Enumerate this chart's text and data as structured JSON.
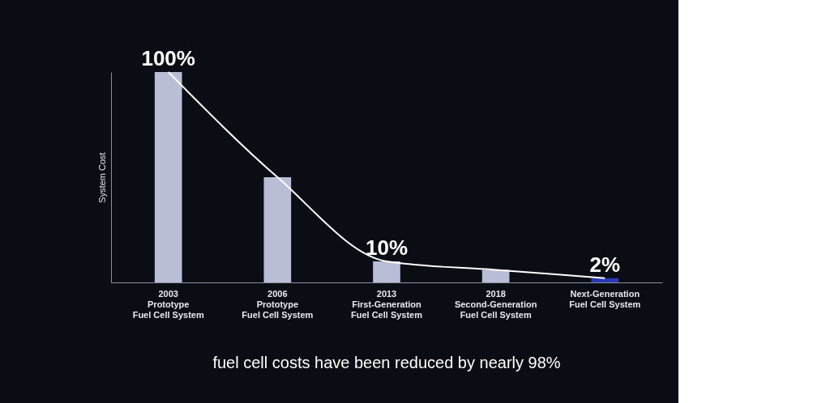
{
  "chart_data": {
    "type": "bar",
    "ylabel": "System Cost",
    "categories": [
      "2003\nPrototype\nFuel Cell System",
      "2006\nPrototype\nFuel Cell System",
      "2013\nFirst-Generation\nFuel Cell System",
      "2018\nSecond-Generation\nFuel Cell System",
      "Next-Generation\nFuel Cell System"
    ],
    "ylim": [
      0,
      100
    ],
    "series": [
      {
        "colors": [
          "#b9bed6",
          "#b9bed6",
          "#b9bed6",
          "#b9bed6",
          "#2a38b8"
        ],
        "values": [
          100,
          50,
          10,
          6,
          2
        ],
        "value_labels": [
          "100%",
          null,
          "10%",
          null,
          "2%"
        ]
      },
      {
        "type": "line",
        "color": "#ffffff",
        "values": [
          100,
          50,
          10,
          6,
          2
        ]
      }
    ],
    "grid": false,
    "annotations": [
      "fuel cell costs have been reduced by nearly 98%"
    ]
  }
}
